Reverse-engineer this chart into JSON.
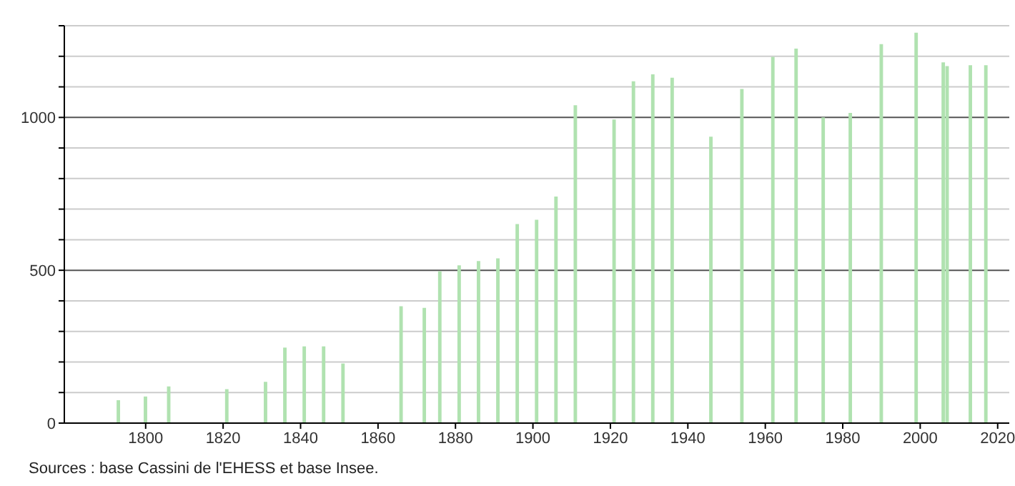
{
  "chart_data": {
    "type": "bar",
    "x": [
      1793,
      1800,
      1806,
      1821,
      1831,
      1836,
      1841,
      1846,
      1851,
      1866,
      1872,
      1876,
      1881,
      1886,
      1891,
      1896,
      1901,
      1906,
      1911,
      1921,
      1926,
      1931,
      1936,
      1946,
      1954,
      1962,
      1968,
      1975,
      1982,
      1990,
      1999,
      2006,
      2007,
      2013,
      2017
    ],
    "values": [
      75,
      87,
      120,
      111,
      135,
      247,
      251,
      251,
      195,
      382,
      377,
      497,
      516,
      530,
      539,
      651,
      665,
      741,
      1040,
      993,
      1118,
      1141,
      1130,
      937,
      1093,
      1198,
      1225,
      1000,
      1015,
      1240,
      1277,
      1180,
      1168,
      1171,
      1171
    ],
    "color": "#b0e2b0",
    "xlim": [
      1779,
      2023
    ],
    "xticks": [
      1800,
      1820,
      1840,
      1860,
      1880,
      1900,
      1920,
      1940,
      1960,
      1980,
      2000,
      2020
    ],
    "ylim": [
      0,
      1300
    ],
    "yticks": [
      0,
      {
        "value": 100,
        "label": null
      },
      {
        "value": 200,
        "label": null
      },
      {
        "value": 300,
        "label": null
      },
      {
        "value": 400,
        "label": null
      },
      500,
      {
        "value": 600,
        "label": null
      },
      {
        "value": 700,
        "label": null
      },
      {
        "value": 800,
        "label": null
      },
      {
        "value": 900,
        "label": null
      },
      1000,
      {
        "value": 1100,
        "label": null
      },
      {
        "value": 1200,
        "label": null
      },
      {
        "value": 1300,
        "label": null
      }
    ],
    "grid": "y",
    "annotations": [
      "Sources : base Cassini de l'EHESS et base Insee."
    ]
  }
}
